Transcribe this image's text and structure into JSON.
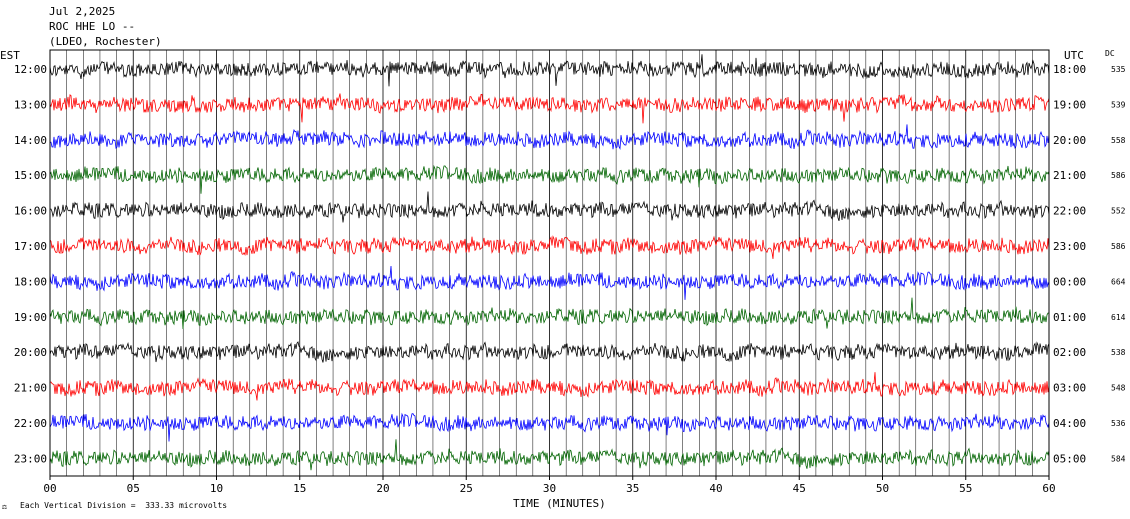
{
  "header": {
    "date": "Jul 2,2025",
    "station": "ROC HHE LO --",
    "network": "(LDEO, Rochester)"
  },
  "axes": {
    "left_label": "EST",
    "right_label": "UTC",
    "dc_label": "DC",
    "x_label": "TIME (MINUTES)",
    "footer": "Each Vertical Division =  333.33 microvolts"
  },
  "chart_data": {
    "type": "line",
    "title": "",
    "xlabel": "TIME (MINUTES)",
    "ylabel": "",
    "xlim": [
      0,
      60
    ],
    "x_ticks": [
      "00",
      "05",
      "10",
      "15",
      "20",
      "25",
      "30",
      "35",
      "40",
      "45",
      "50",
      "55",
      "60"
    ],
    "grid": "vertical lines every minute",
    "colors": [
      "#000000",
      "#ff0000",
      "#0000ff",
      "#006400"
    ],
    "rows": [
      {
        "est": "12:00",
        "utc": "18:00",
        "dc": "535",
        "color": "#000000"
      },
      {
        "est": "13:00",
        "utc": "19:00",
        "dc": "539",
        "color": "#ff0000"
      },
      {
        "est": "14:00",
        "utc": "20:00",
        "dc": "558",
        "color": "#0000ff"
      },
      {
        "est": "15:00",
        "utc": "21:00",
        "dc": "586",
        "color": "#006400"
      },
      {
        "est": "16:00",
        "utc": "22:00",
        "dc": "552",
        "color": "#000000"
      },
      {
        "est": "17:00",
        "utc": "23:00",
        "dc": "586",
        "color": "#ff0000"
      },
      {
        "est": "18:00",
        "utc": "00:00",
        "dc": "664",
        "color": "#0000ff"
      },
      {
        "est": "19:00",
        "utc": "01:00",
        "dc": "614",
        "color": "#006400"
      },
      {
        "est": "20:00",
        "utc": "02:00",
        "dc": "538",
        "color": "#000000"
      },
      {
        "est": "21:00",
        "utc": "03:00",
        "dc": "548",
        "color": "#ff0000"
      },
      {
        "est": "22:00",
        "utc": "04:00",
        "dc": "536",
        "color": "#0000ff"
      },
      {
        "est": "23:00",
        "utc": "05:00",
        "dc": "584",
        "color": "#006400"
      }
    ]
  }
}
